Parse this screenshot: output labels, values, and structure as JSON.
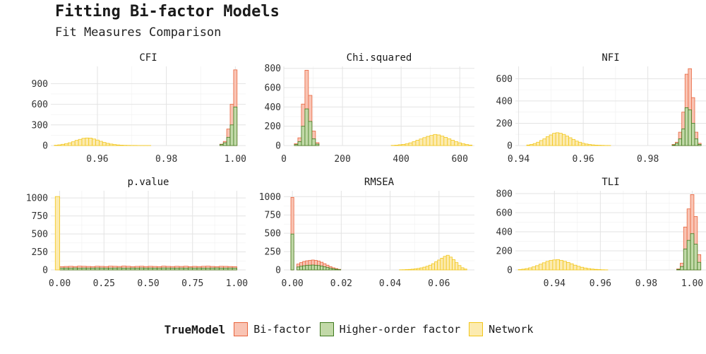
{
  "title": "Fitting Bi-factor Models",
  "subtitle": "Fit Measures Comparison",
  "legend": {
    "title": "TrueModel",
    "items": [
      {
        "label": "Bi-factor",
        "fill": "#f9c4b4",
        "stroke": "#e8643c"
      },
      {
        "label": "Higher-order factor",
        "fill": "#c2d9a8",
        "stroke": "#3f7a1e"
      },
      {
        "label": "Network",
        "fill": "#fcebb0",
        "stroke": "#f2c61a"
      }
    ]
  },
  "chart_data": [
    {
      "type": "bar",
      "facet": "CFI",
      "xlim": [
        0.9465,
        1.003
      ],
      "ylim": [
        0,
        1150
      ],
      "xticks": [
        {
          "v": 0.96,
          "label": "0.96"
        },
        {
          "v": 0.98,
          "label": "0.98"
        },
        {
          "v": 1.0,
          "label": "1.00"
        }
      ],
      "yticks": [
        0,
        300,
        600,
        900
      ],
      "binwidth": 0.001,
      "series": [
        {
          "name": "Bi-factor",
          "x": [
            0.996,
            0.997,
            0.998,
            0.999,
            1.0
          ],
          "values": [
            20,
            60,
            240,
            600,
            1100
          ]
        },
        {
          "name": "Higher-order factor",
          "x": [
            0.996,
            0.997,
            0.998,
            0.999,
            1.0
          ],
          "values": [
            15,
            40,
            120,
            300,
            560
          ]
        },
        {
          "name": "Network",
          "x": [
            0.948,
            0.949,
            0.95,
            0.951,
            0.952,
            0.953,
            0.954,
            0.955,
            0.956,
            0.957,
            0.958,
            0.959,
            0.96,
            0.961,
            0.962,
            0.963,
            0.964,
            0.965,
            0.966,
            0.967,
            0.968,
            0.969,
            0.97,
            0.971,
            0.972,
            0.973,
            0.974,
            0.975
          ],
          "values": [
            5,
            10,
            18,
            28,
            40,
            55,
            75,
            90,
            105,
            110,
            108,
            95,
            80,
            62,
            45,
            32,
            22,
            14,
            9,
            6,
            4,
            3,
            2,
            2,
            1,
            1,
            1,
            1
          ]
        }
      ]
    },
    {
      "type": "bar",
      "facet": "Chi.squared",
      "xlim": [
        0,
        650
      ],
      "ylim": [
        0,
        820
      ],
      "xticks": [
        {
          "v": 0,
          "label": "0"
        },
        {
          "v": 200,
          "label": "200"
        },
        {
          "v": 400,
          "label": "400"
        },
        {
          "v": 600,
          "label": "600"
        }
      ],
      "yticks": [
        0,
        200,
        400,
        600,
        800
      ],
      "binwidth": 12,
      "series": [
        {
          "name": "Bi-factor",
          "x": [
            42,
            54,
            66,
            78,
            90,
            102,
            114
          ],
          "values": [
            20,
            80,
            430,
            780,
            520,
            150,
            30
          ]
        },
        {
          "name": "Higher-order factor",
          "x": [
            42,
            54,
            66,
            78,
            90,
            102,
            114
          ],
          "values": [
            10,
            40,
            200,
            380,
            250,
            70,
            15
          ]
        },
        {
          "name": "Network",
          "x": [
            372,
            384,
            396,
            408,
            420,
            432,
            444,
            456,
            468,
            480,
            492,
            504,
            516,
            528,
            540,
            552,
            564,
            576,
            588,
            600,
            612,
            624,
            636
          ],
          "values": [
            2,
            4,
            8,
            12,
            18,
            28,
            40,
            55,
            68,
            82,
            95,
            105,
            115,
            110,
            98,
            85,
            70,
            55,
            40,
            28,
            18,
            10,
            5
          ]
        }
      ]
    },
    {
      "type": "bar",
      "facet": "NFI",
      "xlim": [
        0.939,
        0.998
      ],
      "ylim": [
        0,
        710
      ],
      "xticks": [
        {
          "v": 0.94,
          "label": "0.94"
        },
        {
          "v": 0.96,
          "label": "0.96"
        },
        {
          "v": 0.98,
          "label": "0.98"
        }
      ],
      "yticks": [
        0,
        200,
        400,
        600
      ],
      "binwidth": 0.001,
      "series": [
        {
          "name": "Bi-factor",
          "x": [
            0.988,
            0.989,
            0.99,
            0.991,
            0.992,
            0.993,
            0.994,
            0.995,
            0.996
          ],
          "values": [
            10,
            30,
            120,
            300,
            640,
            690,
            430,
            120,
            20
          ]
        },
        {
          "name": "Higher-order factor",
          "x": [
            0.988,
            0.989,
            0.99,
            0.991,
            0.992,
            0.993,
            0.994,
            0.995,
            0.996
          ],
          "values": [
            5,
            20,
            60,
            150,
            340,
            320,
            200,
            60,
            10
          ]
        },
        {
          "name": "Network",
          "x": [
            0.943,
            0.944,
            0.945,
            0.946,
            0.947,
            0.948,
            0.949,
            0.95,
            0.951,
            0.952,
            0.953,
            0.954,
            0.955,
            0.956,
            0.957,
            0.958,
            0.959,
            0.96,
            0.961,
            0.962,
            0.963,
            0.964,
            0.965,
            0.966,
            0.967,
            0.968
          ],
          "values": [
            5,
            10,
            18,
            30,
            45,
            60,
            80,
            95,
            110,
            115,
            110,
            100,
            85,
            70,
            55,
            40,
            30,
            20,
            14,
            9,
            6,
            4,
            3,
            2,
            1,
            1
          ]
        }
      ]
    },
    {
      "type": "bar",
      "facet": "p.value",
      "xlim": [
        -0.05,
        1.05
      ],
      "ylim": [
        0,
        1100
      ],
      "xticks": [
        {
          "v": 0,
          "label": "0.00"
        },
        {
          "v": 0.25,
          "label": "0.25"
        },
        {
          "v": 0.5,
          "label": "0.50"
        },
        {
          "v": 0.75,
          "label": "0.75"
        },
        {
          "v": 1.0,
          "label": "1.00"
        }
      ],
      "yticks": [
        0,
        250,
        500,
        750,
        1000
      ],
      "binwidth": 0.025,
      "series": [
        {
          "name": "Bi-factor",
          "x": [
            0.0125,
            0.0375,
            0.0625,
            0.0875,
            0.1125,
            0.1375,
            0.1625,
            0.1875,
            0.2125,
            0.2375,
            0.2625,
            0.2875,
            0.3125,
            0.3375,
            0.3625,
            0.3875,
            0.4125,
            0.4375,
            0.4625,
            0.4875,
            0.5125,
            0.5375,
            0.5625,
            0.5875,
            0.6125,
            0.6375,
            0.6625,
            0.6875,
            0.7125,
            0.7375,
            0.7625,
            0.7875,
            0.8125,
            0.8375,
            0.8625,
            0.8875,
            0.9125,
            0.9375,
            0.9625,
            0.9875
          ],
          "values": [
            45,
            48,
            50,
            47,
            52,
            50,
            48,
            46,
            51,
            49,
            47,
            52,
            50,
            48,
            53,
            50,
            46,
            49,
            51,
            47,
            50,
            48,
            46,
            52,
            49,
            47,
            50,
            48,
            51,
            46,
            49,
            47,
            50,
            52,
            48,
            46,
            50,
            49,
            47,
            45
          ]
        },
        {
          "name": "Higher-order factor",
          "x": [
            0.0125,
            0.0375,
            0.0625,
            0.0875,
            0.1125,
            0.1375,
            0.1625,
            0.1875,
            0.2125,
            0.2375,
            0.2625,
            0.2875,
            0.3125,
            0.3375,
            0.3625,
            0.3875,
            0.4125,
            0.4375,
            0.4625,
            0.4875,
            0.5125,
            0.5375,
            0.5625,
            0.5875,
            0.6125,
            0.6375,
            0.6625,
            0.6875,
            0.7125,
            0.7375,
            0.7625,
            0.7875,
            0.8125,
            0.8375,
            0.8625,
            0.8875,
            0.9125,
            0.9375,
            0.9625,
            0.9875
          ],
          "values": [
            25,
            26,
            24,
            27,
            25,
            26,
            24,
            25,
            27,
            26,
            24,
            25,
            26,
            27,
            25,
            24,
            26,
            25,
            27,
            24,
            26,
            25,
            24,
            27,
            26,
            25,
            24,
            26,
            25,
            27,
            24,
            26,
            25,
            24,
            26,
            27,
            25,
            24,
            26,
            25
          ]
        },
        {
          "name": "Network",
          "x": [
            -0.0125
          ],
          "values": [
            1020
          ]
        }
      ]
    },
    {
      "type": "bar",
      "facet": "RMSEA",
      "xlim": [
        -0.0035,
        0.0745
      ],
      "ylim": [
        0,
        1080
      ],
      "xticks": [
        {
          "v": 0,
          "label": "0.00"
        },
        {
          "v": 0.02,
          "label": "0.02"
        },
        {
          "v": 0.04,
          "label": "0.04"
        },
        {
          "v": 0.06,
          "label": "0.06"
        }
      ],
      "yticks": [
        0,
        250,
        500,
        750,
        1000
      ],
      "binwidth": 0.0012,
      "series": [
        {
          "name": "Bi-factor",
          "x": [
            0.0,
            0.0024,
            0.0036,
            0.0048,
            0.006,
            0.0072,
            0.0084,
            0.0096,
            0.0108,
            0.012,
            0.0132,
            0.0144,
            0.0156,
            0.0168,
            0.018,
            0.0192
          ],
          "values": [
            990,
            80,
            100,
            115,
            125,
            130,
            135,
            130,
            120,
            105,
            85,
            65,
            45,
            30,
            18,
            8
          ]
        },
        {
          "name": "Higher-order factor",
          "x": [
            0.0,
            0.0024,
            0.0036,
            0.0048,
            0.006,
            0.0072,
            0.0084,
            0.0096,
            0.0108,
            0.012,
            0.0132,
            0.0144,
            0.0156,
            0.0168,
            0.018,
            0.0192
          ],
          "values": [
            490,
            40,
            50,
            57,
            62,
            65,
            67,
            64,
            60,
            52,
            42,
            32,
            22,
            15,
            9,
            4
          ]
        },
        {
          "name": "Network",
          "x": [
            0.0444,
            0.0456,
            0.0468,
            0.048,
            0.0492,
            0.0504,
            0.0516,
            0.0528,
            0.054,
            0.0552,
            0.0564,
            0.0576,
            0.0588,
            0.06,
            0.0612,
            0.0624,
            0.0636,
            0.0648,
            0.066,
            0.0672,
            0.0684,
            0.0696,
            0.0708
          ],
          "values": [
            2,
            3,
            5,
            7,
            10,
            14,
            20,
            28,
            38,
            50,
            65,
            85,
            110,
            135,
            160,
            185,
            200,
            175,
            140,
            100,
            60,
            30,
            12
          ]
        }
      ]
    },
    {
      "type": "bar",
      "facet": "TLI",
      "xlim": [
        0.923,
        1.006
      ],
      "ylim": [
        0,
        830
      ],
      "xticks": [
        {
          "v": 0.94,
          "label": "0.94"
        },
        {
          "v": 0.96,
          "label": "0.96"
        },
        {
          "v": 0.98,
          "label": "0.98"
        },
        {
          "v": 1.0,
          "label": "1.00"
        }
      ],
      "yticks": [
        0,
        200,
        400,
        600,
        800
      ],
      "binwidth": 0.0015,
      "series": [
        {
          "name": "Bi-factor",
          "x": [
            0.994,
            0.9955,
            0.997,
            0.9985,
            1.0,
            1.0015,
            1.003
          ],
          "values": [
            10,
            70,
            450,
            640,
            790,
            560,
            160
          ]
        },
        {
          "name": "Higher-order factor",
          "x": [
            0.994,
            0.9955,
            0.997,
            0.9985,
            1.0,
            1.0015,
            1.003
          ],
          "values": [
            5,
            35,
            220,
            310,
            380,
            270,
            80
          ]
        },
        {
          "name": "Network",
          "x": [
            0.925,
            0.9265,
            0.928,
            0.9295,
            0.931,
            0.9325,
            0.934,
            0.9355,
            0.937,
            0.9385,
            0.94,
            0.9415,
            0.943,
            0.9445,
            0.946,
            0.9475,
            0.949,
            0.9505,
            0.952,
            0.9535,
            0.955,
            0.9565,
            0.958,
            0.9595,
            0.961,
            0.9625
          ],
          "values": [
            4,
            8,
            14,
            22,
            32,
            45,
            60,
            75,
            90,
            100,
            105,
            108,
            100,
            90,
            78,
            64,
            50,
            38,
            28,
            20,
            14,
            9,
            6,
            4,
            2,
            1
          ]
        }
      ]
    }
  ]
}
